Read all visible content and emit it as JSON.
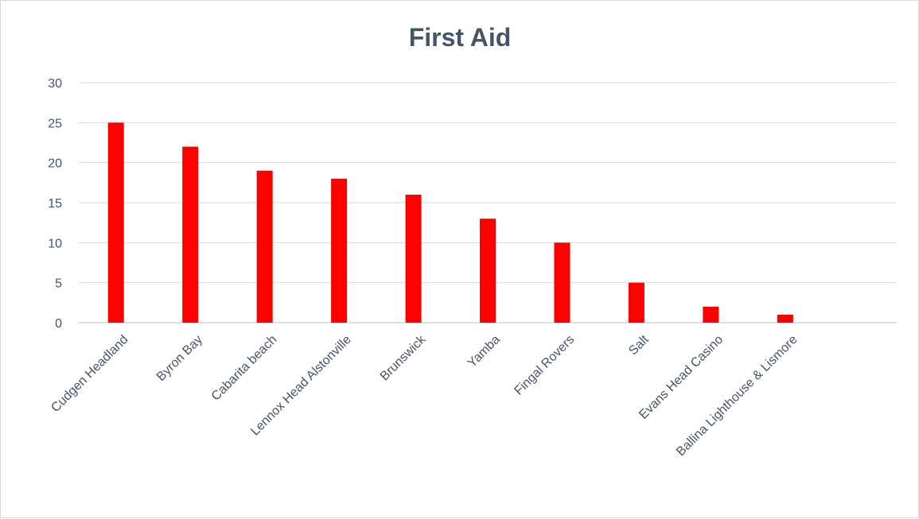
{
  "chart_data": {
    "type": "bar",
    "title": "First Aid",
    "xlabel": "",
    "ylabel": "",
    "categories": [
      "Cudgen Headland",
      "Byron Bay",
      "Cabarita beach",
      "Lennox Head Alstonville",
      "Brunswick",
      "Yamba",
      "Fingal Rovers",
      "Salt",
      "Evans Head Casino",
      "Ballina Lighthouse & Lismore",
      ""
    ],
    "values": [
      25,
      22,
      19,
      18,
      16,
      13,
      10,
      5,
      2,
      1,
      null
    ],
    "ylim": [
      0,
      30
    ],
    "yticks": [
      "0",
      "5",
      "10",
      "15",
      "20",
      "25",
      "30"
    ],
    "grid": true,
    "legend": "none",
    "bar_color": "#ff0000"
  }
}
